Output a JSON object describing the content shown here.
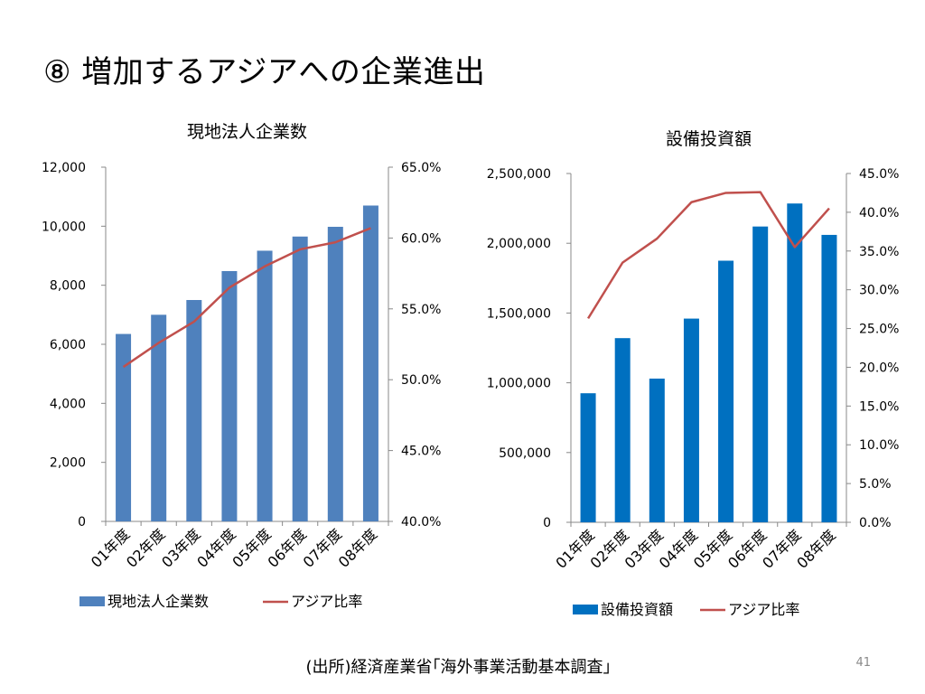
{
  "slide": {
    "title": "⑧ 増加するアジアへの企業進出",
    "source": "(出所)経済産業省｢海外事業活動基本調査」",
    "page_number": "41"
  },
  "chart_data": [
    {
      "type": "bar",
      "title": "現地法人企業数",
      "categories": [
        "01年度",
        "02年度",
        "03年度",
        "04年度",
        "05年度",
        "06年度",
        "07年度",
        "08年度"
      ],
      "series": [
        {
          "name": "現地法人企業数",
          "kind": "bar",
          "axis": "left",
          "color": "#4f81bd",
          "values": [
            6350,
            7000,
            7500,
            8480,
            9170,
            9650,
            9980,
            10700
          ]
        },
        {
          "name": "アジア比率",
          "kind": "line",
          "axis": "right",
          "color": "#c0504d",
          "values": [
            50.9,
            52.6,
            54.1,
            56.5,
            58.0,
            59.2,
            59.7,
            60.7
          ]
        }
      ],
      "ylim_left": [
        0,
        12000
      ],
      "yticks_left": [
        0,
        2000,
        4000,
        6000,
        8000,
        10000,
        12000
      ],
      "ytick_labels_left": [
        "0",
        "2,000",
        "4,000",
        "6,000",
        "8,000",
        "10,000",
        "12,000"
      ],
      "ylim_right": [
        40,
        65
      ],
      "yticks_right": [
        40,
        45,
        50,
        55,
        60,
        65
      ],
      "ytick_labels_right": [
        "40.0%",
        "45.0%",
        "50.0%",
        "55.0%",
        "60.0%",
        "65.0%"
      ],
      "legend": "bottom",
      "grid": false
    },
    {
      "type": "bar",
      "title": "設備投資額",
      "categories": [
        "01年度",
        "02年度",
        "03年度",
        "04年度",
        "05年度",
        "06年度",
        "07年度",
        "08年度"
      ],
      "series": [
        {
          "name": "設備投資額",
          "kind": "bar",
          "axis": "left",
          "color": "#0070c0",
          "values": [
            925000,
            1320000,
            1030000,
            1460000,
            1875000,
            2120000,
            2285000,
            2060000
          ]
        },
        {
          "name": "アジア比率",
          "kind": "line",
          "axis": "right",
          "color": "#c0504d",
          "values": [
            26.3,
            33.5,
            36.6,
            41.3,
            42.5,
            42.6,
            35.5,
            40.5
          ]
        }
      ],
      "ylim_left": [
        0,
        2500000
      ],
      "yticks_left": [
        0,
        500000,
        1000000,
        1500000,
        2000000,
        2500000
      ],
      "ytick_labels_left": [
        "0",
        "500,000",
        "1,000,000",
        "1,500,000",
        "2,000,000",
        "2,500,000"
      ],
      "ylim_right": [
        0,
        45
      ],
      "yticks_right": [
        0,
        5,
        10,
        15,
        20,
        25,
        30,
        35,
        40,
        45
      ],
      "ytick_labels_right": [
        "0.0%",
        "5.0%",
        "10.0%",
        "15.0%",
        "20.0%",
        "25.0%",
        "30.0%",
        "35.0%",
        "40.0%",
        "45.0%"
      ],
      "legend": "bottom",
      "grid": false
    }
  ]
}
